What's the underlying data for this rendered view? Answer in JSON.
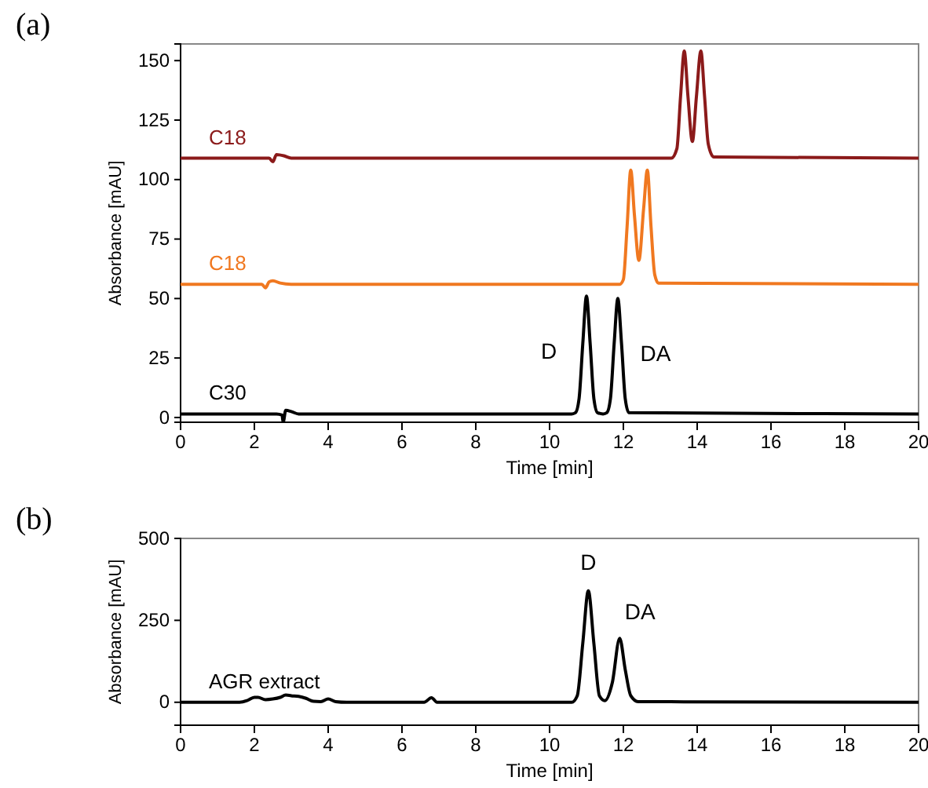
{
  "chart_data": [
    {
      "type": "line",
      "title": "(a)",
      "xlabel": "Time [min]",
      "ylabel": "Absorbance [mAU]",
      "xlim": [
        0,
        20
      ],
      "xticks": [
        0,
        2,
        4,
        6,
        8,
        10,
        12,
        14,
        16,
        18,
        20
      ],
      "ylim": [
        -2,
        157
      ],
      "yticks": [
        0,
        25,
        50,
        75,
        100,
        125,
        150
      ],
      "grid": false,
      "legend": false,
      "line_style": "solid",
      "marker": "none",
      "series": [
        {
          "name": "C18",
          "color": "#8b1a1a",
          "x": [
            0,
            2.4,
            2.5,
            2.6,
            2.8,
            3.0,
            13.3,
            13.45,
            13.55,
            13.65,
            13.75,
            13.87,
            13.98,
            14.1,
            14.2,
            14.3,
            14.45,
            20
          ],
          "values": [
            109,
            109,
            107.5,
            110.5,
            110,
            109,
            109,
            113,
            135,
            154,
            135,
            116,
            135,
            154,
            135,
            115,
            109.5,
            109
          ]
        },
        {
          "name": "C18",
          "color": "#f07820",
          "x": [
            0,
            2.2,
            2.3,
            2.4,
            2.5,
            2.7,
            3,
            11.9,
            12.0,
            12.1,
            12.2,
            12.3,
            12.42,
            12.55,
            12.65,
            12.75,
            12.85,
            12.95,
            20
          ],
          "values": [
            56,
            56,
            54.5,
            57,
            57.5,
            56.5,
            56,
            56,
            58,
            80,
            104,
            85,
            66,
            88,
            104,
            80,
            60,
            56.5,
            56
          ]
        },
        {
          "name": "C30",
          "color": "#000000",
          "x": [
            0,
            2.6,
            2.75,
            2.78,
            2.85,
            3.0,
            3.2,
            10.6,
            10.7,
            10.8,
            10.9,
            11.0,
            11.1,
            11.2,
            11.3,
            11.45,
            11.55,
            11.65,
            11.75,
            11.85,
            11.95,
            12.05,
            12.15,
            20
          ],
          "values": [
            1.5,
            1.5,
            1.0,
            -2,
            3,
            2.5,
            1.5,
            1.5,
            2,
            8,
            31,
            51,
            31,
            8,
            2,
            1.5,
            2,
            8,
            31,
            50,
            31,
            8,
            2,
            1.5
          ]
        }
      ],
      "annotations": [
        {
          "text": "D",
          "x": 11.0,
          "y": 51
        },
        {
          "text": "DA",
          "x": 11.85,
          "y": 50
        }
      ]
    },
    {
      "type": "line",
      "title": "(b)",
      "xlabel": "Time [min]",
      "ylabel": "Absorbance [mAU]",
      "xlim": [
        0,
        20
      ],
      "xticks": [
        0,
        2,
        4,
        6,
        8,
        10,
        12,
        14,
        16,
        18,
        20
      ],
      "ylim": [
        -70,
        500
      ],
      "yticks": [
        0,
        250,
        500
      ],
      "grid": false,
      "legend": false,
      "line_style": "solid",
      "marker": "none",
      "series": [
        {
          "name": "AGR extract",
          "color": "#000000",
          "x": [
            0,
            1.6,
            1.8,
            2.0,
            2.1,
            2.3,
            2.5,
            2.7,
            2.85,
            3.0,
            3.2,
            3.4,
            3.6,
            3.8,
            4.0,
            4.2,
            4.5,
            6.6,
            6.8,
            6.95,
            10.6,
            10.75,
            10.9,
            11.05,
            11.2,
            11.35,
            11.5,
            11.7,
            11.9,
            12.05,
            12.2,
            12.4,
            20
          ],
          "values": [
            0,
            0,
            5,
            15,
            15,
            8,
            10,
            15,
            22,
            20,
            18,
            12,
            3,
            2,
            10,
            2,
            0,
            0,
            14,
            0,
            0,
            20,
            180,
            340,
            180,
            20,
            5,
            60,
            195,
            100,
            20,
            2,
            0
          ]
        }
      ],
      "annotations": [
        {
          "text": "D",
          "x": 11.05,
          "y": 340
        },
        {
          "text": "DA",
          "x": 11.9,
          "y": 195
        }
      ]
    }
  ]
}
